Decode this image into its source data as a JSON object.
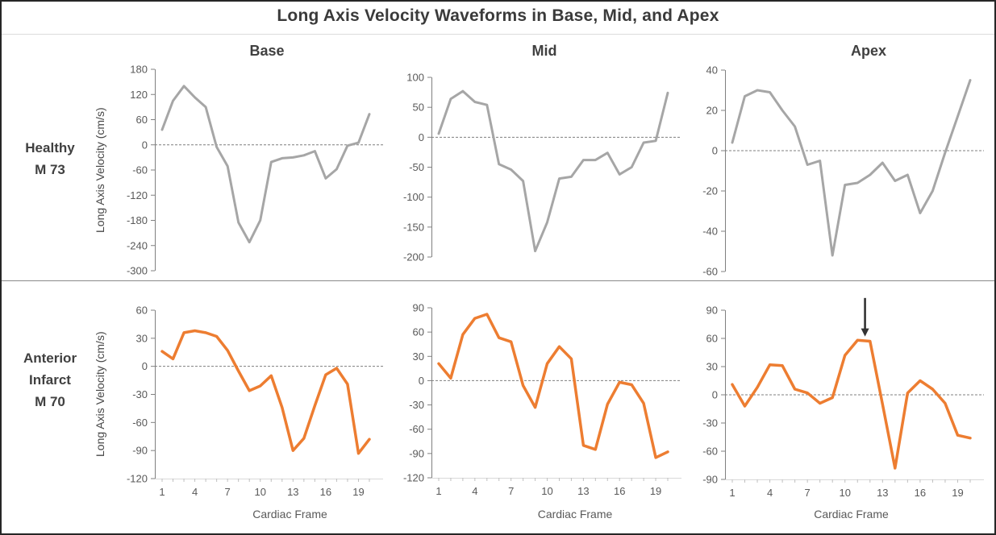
{
  "title": "Long Axis Velocity Waveforms in Base, Mid, and Apex",
  "columns": [
    "Base",
    "Mid",
    "Apex"
  ],
  "row_labels": {
    "healthy": [
      "Healthy",
      "M 73"
    ],
    "infarct": [
      "Anterior",
      "Infarct",
      "M 70"
    ]
  },
  "y_axis_label": "Long Axis Velocity (cm/s)",
  "x_axis_label": "Cardiac Frame",
  "colors": {
    "healthy_line": "#A6A6A6",
    "infarct_line": "#ED7D31",
    "axis": "#808080",
    "tick_text": "#595959",
    "zero_line": "#7F7F7F",
    "x_axis_line": "#D9D9D9",
    "x_tick": "#BFBFBF",
    "arrow": "#333333",
    "border": "#262626"
  },
  "chart_meta": {
    "x_frames": [
      1,
      2,
      3,
      4,
      5,
      6,
      7,
      8,
      9,
      10,
      11,
      12,
      13,
      14,
      15,
      16,
      17,
      18,
      19,
      20
    ],
    "x_tick_labels": [
      1,
      4,
      7,
      10,
      13,
      16,
      19
    ],
    "zero_baseline_dashed": true,
    "grid": false,
    "legend": "none"
  },
  "chart_data": [
    {
      "id": "healthy-base",
      "type": "line",
      "row": "Healthy M 73",
      "col": "Base",
      "ylim": [
        -300,
        180
      ],
      "yticks": [
        180,
        120,
        60,
        0,
        -60,
        -120,
        -180,
        -240,
        -300
      ],
      "values": [
        36,
        105,
        140,
        113,
        90,
        -5,
        -51,
        -185,
        -232,
        -180,
        -41,
        -32,
        -30,
        -25,
        -15,
        -80,
        -58,
        -2,
        5,
        73
      ],
      "color": "#A6A6A6",
      "line_width": 3,
      "show_x_axis": false,
      "annotation": null
    },
    {
      "id": "healthy-mid",
      "type": "line",
      "row": "Healthy M 73",
      "col": "Mid",
      "ylim": [
        -200,
        100
      ],
      "yticks": [
        100,
        50,
        0,
        -50,
        -100,
        -150,
        -200
      ],
      "values": [
        6,
        64,
        77,
        59,
        54,
        -45,
        -54,
        -73,
        -190,
        -142,
        -69,
        -66,
        -38,
        -38,
        -26,
        -62,
        -50,
        -9,
        -6,
        74
      ],
      "color": "#A6A6A6",
      "line_width": 3,
      "show_x_axis": false,
      "annotation": null
    },
    {
      "id": "healthy-apex",
      "type": "line",
      "row": "Healthy M 73",
      "col": "Apex",
      "ylim": [
        -60,
        40
      ],
      "yticks": [
        40,
        20,
        0,
        -20,
        -40,
        -60
      ],
      "values": [
        4,
        27,
        30,
        29,
        20,
        12,
        -7,
        -5,
        -52,
        -17,
        -16,
        -12,
        -6,
        -15,
        -12,
        -31,
        -20,
        -1,
        17,
        35
      ],
      "color": "#A6A6A6",
      "line_width": 3,
      "show_x_axis": false,
      "annotation": null
    },
    {
      "id": "infarct-base",
      "type": "line",
      "row": "Anterior Infarct M 70",
      "col": "Base",
      "ylim": [
        -120,
        60
      ],
      "yticks": [
        60,
        30,
        0,
        -30,
        -60,
        -90,
        -120
      ],
      "values": [
        16,
        8,
        36,
        38,
        36,
        32,
        17,
        -5,
        -26,
        -21,
        -10,
        -44,
        -90,
        -77,
        -42,
        -9,
        -2,
        -19,
        -93,
        -78
      ],
      "color": "#ED7D31",
      "line_width": 3.5,
      "show_x_axis": true,
      "annotation": null
    },
    {
      "id": "infarct-mid",
      "type": "line",
      "row": "Anterior Infarct M 70",
      "col": "Mid",
      "ylim": [
        -120,
        90
      ],
      "yticks": [
        90,
        60,
        30,
        0,
        -30,
        -60,
        -90,
        -120
      ],
      "values": [
        21,
        3,
        57,
        77,
        82,
        53,
        48,
        -6,
        -33,
        21,
        42,
        27,
        -80,
        -85,
        -29,
        -2,
        -5,
        -28,
        -95,
        -88
      ],
      "color": "#ED7D31",
      "line_width": 3.5,
      "show_x_axis": true,
      "annotation": null
    },
    {
      "id": "infarct-apex",
      "type": "line",
      "row": "Anterior Infarct M 70",
      "col": "Apex",
      "ylim": [
        -90,
        90
      ],
      "yticks": [
        90,
        60,
        30,
        0,
        -30,
        -60,
        -90
      ],
      "values": [
        11,
        -12,
        8,
        32,
        31,
        6,
        2,
        -9,
        -3,
        42,
        58,
        57,
        -10,
        -78,
        2,
        15,
        6,
        -9,
        -43,
        -46
      ],
      "color": "#ED7D31",
      "line_width": 3.5,
      "show_x_axis": true,
      "annotation": {
        "type": "arrow-down",
        "frame": 11.6,
        "value_from": 103,
        "value_to": 62
      }
    }
  ]
}
